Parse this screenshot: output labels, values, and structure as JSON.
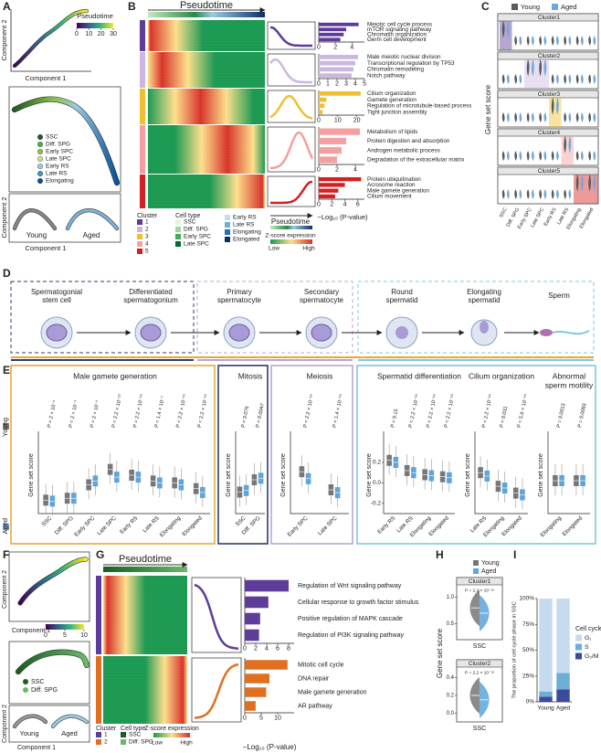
{
  "A": {
    "label": "A",
    "colorbar_title": "Pseudotime",
    "colorbar_ticks": [
      0,
      10,
      20,
      30
    ],
    "xlabel": "Component 1",
    "ylabel": "Component 2",
    "legend": [
      {
        "name": "SSC",
        "color": "#1b5e20"
      },
      {
        "name": "Diff. SPG",
        "color": "#4caf50"
      },
      {
        "name": "Early SPC",
        "color": "#8bc34a"
      },
      {
        "name": "Late SPC",
        "color": "#c5e1a5"
      },
      {
        "name": "Early RS",
        "color": "#9ecae1"
      },
      {
        "name": "Late RS",
        "color": "#4292c6"
      },
      {
        "name": "Elongating",
        "color": "#08519c"
      }
    ],
    "groups": [
      "Young",
      "Aged"
    ]
  },
  "B": {
    "label": "B",
    "title": "Pseudotime",
    "clusters": [
      {
        "name": "1",
        "color": "#5e3c99",
        "terms": [
          "Meiotic cell cycle process",
          "mTOR signaling pathway",
          "Chromatin organization",
          "Germ cell development"
        ],
        "values": [
          4.8,
          3.3,
          3.0,
          2.6
        ],
        "xlim": [
          0,
          5.5
        ],
        "xticks": [
          0,
          2,
          4
        ]
      },
      {
        "name": "2",
        "color": "#cbb7e0",
        "terms": [
          "Male meiotic nuclear division",
          "Transcriptional regulation by TP53",
          "Chromatin remodeling",
          "Notch pathway"
        ],
        "values": [
          4.3,
          4.0,
          3.8,
          3.6
        ],
        "xlim": [
          0,
          5
        ],
        "xticks": [
          0,
          1,
          2,
          3,
          4,
          5
        ]
      },
      {
        "name": "3",
        "color": "#f0c030",
        "terms": [
          "Cilium organization",
          "Gamete generation",
          "Regulation of microtubule-based process",
          "Tight junction assembly"
        ],
        "values": [
          22,
          4,
          3,
          2
        ],
        "xlim": [
          0,
          24
        ],
        "xticks": [
          0,
          10,
          20
        ]
      },
      {
        "name": "4",
        "color": "#f4a0a0",
        "terms": [
          "Metabolism of lipids",
          "Protein digestion and absorption",
          "Androgen metabolic process",
          "Degradation of the extracellular matrix"
        ],
        "values": [
          4.5,
          3.0,
          2.5,
          2.0
        ],
        "xlim": [
          0,
          5
        ],
        "xticks": [
          0,
          2,
          4
        ]
      },
      {
        "name": "5",
        "color": "#d42020",
        "terms": [
          "Protein ubiquitination",
          "Acrosome reaction",
          "Male gamete generation",
          "Cilium movement"
        ],
        "values": [
          6.5,
          4.0,
          3.0,
          2.5
        ],
        "xlim": [
          0,
          7
        ],
        "xticks": [
          0,
          2,
          4,
          6
        ]
      }
    ],
    "xlabel": "−Log₁₀ (P-value)",
    "cluster_title": "Cluster",
    "celltype_title": "Cell type",
    "celltypes": [
      {
        "name": "SSC",
        "color": "#e5f5e0"
      },
      {
        "name": "Diff. SPG",
        "color": "#a1d99b"
      },
      {
        "name": "Early SPC",
        "color": "#41ab5d"
      },
      {
        "name": "Late SPC",
        "color": "#006d2c"
      },
      {
        "name": "Early RS",
        "color": "#c6dbef"
      },
      {
        "name": "Late RS",
        "color": "#6baed6"
      },
      {
        "name": "Elongating",
        "color": "#2171b5"
      },
      {
        "name": "Elongated",
        "color": "#08306b"
      }
    ],
    "curve_label": "Pseudotime",
    "zscore_title": "Z-score expression",
    "low": "Low",
    "high": "High"
  },
  "C": {
    "label": "C",
    "legend": [
      {
        "name": "Young",
        "color": "#5a5a5a"
      },
      {
        "name": "Aged",
        "color": "#6fa8dc"
      }
    ],
    "clusters": [
      "Cluster1",
      "Cluster2",
      "Cluster3",
      "Cluster4",
      "Cluster5"
    ],
    "categories": [
      "SSC",
      "Diff. SPG",
      "Early SPC",
      "Late SPC",
      "Early RS",
      "Late RS",
      "Elongating",
      "Elongated"
    ],
    "ylabel": "Gene set score"
  },
  "D": {
    "label": "D",
    "stages": [
      [
        "Spermatogonial",
        "stem cell"
      ],
      [
        "Differentiated",
        "spermatogonium"
      ],
      [
        "Primary",
        "spermatocyte"
      ],
      [
        "Secondary",
        "spermatocyte"
      ],
      [
        "Round",
        "spermatid"
      ],
      [
        "Elongating",
        "spermatid"
      ],
      [
        "Sperm"
      ]
    ]
  },
  "E": {
    "label": "E",
    "legend": [
      {
        "name": "Young",
        "color": "#777777"
      },
      {
        "name": "Aged",
        "color": "#5da5da"
      }
    ],
    "ylabel": "Gene set score",
    "panels": [
      {
        "title": [
          "Male gamete generation"
        ],
        "categories": [
          "SSC",
          "Diff. SPG",
          "Early SPC",
          "Late SPC",
          "Early RS",
          "Late RS",
          "Elongating",
          "Elongated"
        ],
        "pvalues": [
          "P = 2 × 10⁻⁶",
          "P = 2 × 10⁻⁵",
          "P = 2 × 10⁻⁵",
          "P < 2.2 × 10⁻¹⁶",
          "P = 2.2 × 10⁻¹⁶",
          "P = 1.4 × 10⁻⁷",
          "P < 2.2 × 10⁻¹⁶",
          "P < 2.2 × 10⁻¹⁶"
        ],
        "young": [
          0.02,
          0.03,
          0.1,
          0.18,
          0.15,
          0.12,
          0.11,
          0.08
        ],
        "aged": [
          0.015,
          0.03,
          0.12,
          0.14,
          0.14,
          0.11,
          0.1,
          0.06
        ],
        "ylim": [
          -0.05,
          0.35
        ]
      },
      {
        "title": [
          "Mitosis"
        ],
        "categories": [
          "SSC",
          "Diff. SPG"
        ],
        "pvalues": [
          "P = 0.076",
          "P = 0.0047"
        ],
        "young": [
          0.04,
          0.12
        ],
        "aged": [
          0.05,
          0.13
        ],
        "ylim": [
          -0.1,
          0.4
        ]
      },
      {
        "title": [
          "Meiosis"
        ],
        "categories": [
          "Early SPC",
          "Late SPC"
        ],
        "pvalues": [
          "P < 2.2 × 10⁻¹⁶",
          "P = 1.4 × 10⁻¹⁶"
        ],
        "young": [
          0.2,
          0.07
        ],
        "aged": [
          0.15,
          0.05
        ],
        "ylim": [
          -0.1,
          0.45
        ]
      },
      {
        "title": [
          "Spermatid differentiation"
        ],
        "categories": [
          "Early RS",
          "Late RS",
          "Elongating",
          "Elongated"
        ],
        "pvalues": [
          "P = 0.15",
          "P < 2.2 × 10⁻¹⁶",
          "P < 2.2 × 10⁻¹⁶",
          "P < 2.2 × 10⁻¹⁶"
        ],
        "young": [
          0.22,
          0.12,
          0.08,
          0.06
        ],
        "aged": [
          0.2,
          0.1,
          0.07,
          0.05
        ],
        "ylim": [
          -0.3,
          0.45
        ],
        "yticks": [
          0.2,
          {
            "value": 0,
            "label": "0.0"
          },
          -0.2
        ]
      },
      {
        "title": [
          "Cilium organization"
        ],
        "categories": [
          "Late RS",
          "Elongating",
          "Elongated"
        ],
        "pvalues": [
          "P < 2.2 × 10⁻¹⁶",
          "P = 0.031",
          "P = 5.6 × 10⁻¹⁶"
        ],
        "young": [
          0.14,
          0.06,
          0.02
        ],
        "aged": [
          0.12,
          0.05,
          0.01
        ],
        "ylim": [
          -0.1,
          0.35
        ]
      },
      {
        "title": [
          "Abnormal",
          "sperm motility"
        ],
        "categories": [
          "Elongating",
          "Elongated"
        ],
        "pvalues": [
          "P = 0.0013",
          "P = 0.0093"
        ],
        "young": [
          0.0,
          0.0
        ],
        "aged": [
          0.0,
          0.0
        ],
        "ylim": [
          -0.15,
          0.2
        ]
      }
    ]
  },
  "F": {
    "label": "F",
    "colorbar_ticks": [
      0,
      5,
      10
    ],
    "xlabel": "Component 1",
    "ylabel": "Component 2",
    "legend": [
      {
        "name": "SSC",
        "color": "#1b5e20"
      },
      {
        "name": "Diff. SPG",
        "color": "#66bb6a"
      }
    ],
    "groups": [
      "Young",
      "Aged"
    ]
  },
  "G": {
    "label": "G",
    "title": "Pseudotime",
    "clusters": [
      {
        "name": "1",
        "color": "#5e3c99",
        "terms": [
          "Regulation of Wnt signaling pathway",
          "Cellular response to growth factor stimulus",
          "Positive regulation of MAPK cascade",
          "Regulation of PI3K signaling pathway"
        ],
        "values": [
          8,
          4.3,
          2.8,
          2.6
        ],
        "xlim": [
          0,
          9
        ],
        "xticks": [
          0,
          2,
          4,
          6,
          8
        ]
      },
      {
        "name": "2",
        "color": "#e07020",
        "terms": [
          "Mitotic cell cycle",
          "DNA repair",
          "Male gamete generation",
          "AR pathway"
        ],
        "values": [
          13,
          7.5,
          6.5,
          3.3
        ],
        "xlim": [
          0,
          15
        ],
        "xticks": [
          0,
          5,
          10
        ]
      }
    ],
    "xlabel": "−Log₁₀ (P-value)",
    "cluster_title": "Cluster",
    "celltype_title": "Cell type",
    "celltypes": [
      {
        "name": "SSC",
        "color": "#1b5e20"
      },
      {
        "name": "Diff. SPG",
        "color": "#66bb6a"
      }
    ],
    "zscore_title": "Z-score expression",
    "low": "Low",
    "high": "High"
  },
  "H": {
    "label": "H",
    "legend": [
      {
        "name": "Young",
        "color": "#777777"
      },
      {
        "name": "Aged",
        "color": "#5da5da"
      }
    ],
    "ylabel": "Gene set score",
    "panels": [
      {
        "title": "Cluster1",
        "pvalue": "P = 2.2 × 10⁻¹⁶",
        "category": "SSC",
        "young": 0.8,
        "aged": 0.7,
        "ylim": [
          0.2,
          1.2
        ],
        "yticks": [
          {
            "value": 1,
            "label": "1.0"
          },
          0.5
        ]
      },
      {
        "title": "Cluster2",
        "pvalue": "P = 2.2 × 10⁻¹⁶",
        "category": "SSC",
        "young": 0.2,
        "aged": 0.15,
        "ylim": [
          -0.1,
          0.5
        ],
        "yticks": [
          0.4,
          0.2,
          {
            "value": 0,
            "label": "0.0"
          }
        ]
      }
    ]
  },
  "I": {
    "label": "I",
    "ylabel": "The proportion of cell cycle phase in SSC",
    "categories": [
      "Young",
      "Aged"
    ],
    "ylim": [
      0,
      100
    ],
    "yticks": [
      {
        "value": 0,
        "label": "0%"
      },
      {
        "value": 25,
        "label": "25%"
      },
      {
        "value": 50,
        "label": "50%"
      },
      {
        "value": 75,
        "label": "75%"
      },
      {
        "value": 100,
        "label": "100%"
      }
    ],
    "legend_title": "Cell cycle",
    "series": [
      {
        "name": "G₁",
        "color": "#c6dbef",
        "values": [
          90,
          72
        ]
      },
      {
        "name": "S",
        "color": "#6baed6",
        "values": [
          5,
          16
        ]
      },
      {
        "name": "G₂/M",
        "color": "#3b4a9c",
        "values": [
          5,
          12
        ]
      }
    ]
  }
}
